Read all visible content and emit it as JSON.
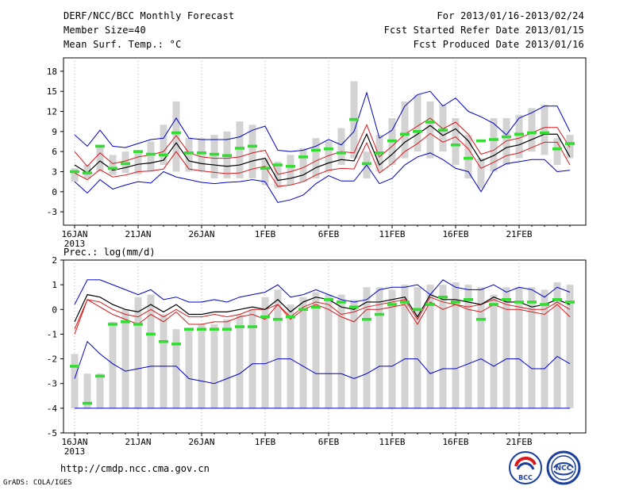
{
  "header": {
    "title": "DERF/NCC/BCC Monthly Forecast",
    "member_size": "Member Size=40",
    "variable": "Mean Surf. Temp.: °C",
    "forecast_period": "For 2013/01/16-2013/02/24",
    "started_date": "Fcst Started Refer Date 2013/01/15",
    "produced_date": "Fcst Produced Date 2013/01/16"
  },
  "footer": {
    "url": "http://cmdp.ncc.cma.gov.cn",
    "software": "GrADS: COLA/IGES",
    "logo_bcc_text": "BCC",
    "logo_ncc_text": "NCC"
  },
  "colors": {
    "box": "#d3d3d3",
    "ensemble_mean": "#000000",
    "std_band": "#d7191c",
    "extreme": "#0000c8",
    "marker": "#33dd33"
  },
  "chart_data": [
    {
      "type": "box",
      "title": "Mean Surf. Temp.: °C",
      "ylim": [
        -5,
        20
      ],
      "yticks": [
        -3,
        0,
        3,
        6,
        9,
        12,
        15,
        18
      ],
      "xtick_labels": [
        "16JAN",
        "21JAN",
        "26JAN",
        "1FEB",
        "6FEB",
        "11FEB",
        "16FEB",
        "21FEB"
      ],
      "xtick_index": [
        0,
        5,
        10,
        15,
        20,
        25,
        30,
        35
      ],
      "year_label": "2013",
      "x_days": 40,
      "series": [
        {
          "name": "box_low",
          "values": [
            1.5,
            2.0,
            3.0,
            2.5,
            2.8,
            2.6,
            3.0,
            4.0,
            3.0,
            3.0,
            3.0,
            2.0,
            2.0,
            2.0,
            2.0,
            1.0,
            0.5,
            1.0,
            1.5,
            2.0,
            3.0,
            4.0,
            5.0,
            2.0,
            3.0,
            4.0,
            5.0,
            6.0,
            5.0,
            6.0,
            4.0,
            2.0,
            0.5,
            3.0,
            4.0,
            5.0,
            6.0,
            5.5,
            4.0,
            5.0
          ]
        },
        {
          "name": "box_high",
          "values": [
            3.5,
            4.0,
            7.0,
            5.5,
            6.0,
            6.0,
            7.5,
            10.0,
            13.5,
            8.0,
            8.0,
            8.5,
            9.0,
            10.5,
            10.0,
            5.0,
            4.5,
            5.5,
            6.5,
            8.0,
            7.5,
            9.5,
            16.5,
            6.0,
            8.5,
            11.0,
            13.5,
            14.5,
            13.5,
            13.0,
            11.0,
            8.5,
            5.0,
            11.0,
            11.0,
            11.5,
            12.5,
            13.0,
            8.0,
            8.5
          ]
        },
        {
          "name": "max",
          "values": [
            8.5,
            6.8,
            9.2,
            6.8,
            6.6,
            7.2,
            7.8,
            8.0,
            11.0,
            8.0,
            7.8,
            7.8,
            7.8,
            8.2,
            9.2,
            9.8,
            6.2,
            6.0,
            6.2,
            6.8,
            7.8,
            7.0,
            9.0,
            14.8,
            8.0,
            9.2,
            12.8,
            14.5,
            15.0,
            12.8,
            14.0,
            12.0,
            11.2,
            10.2,
            8.5,
            11.0,
            11.8,
            12.8,
            12.8,
            9.0
          ]
        },
        {
          "name": "min",
          "values": [
            1.5,
            -0.2,
            1.8,
            0.4,
            1.0,
            1.5,
            1.3,
            3.0,
            2.2,
            1.8,
            1.4,
            1.2,
            1.4,
            1.5,
            1.8,
            1.5,
            -1.6,
            -1.2,
            -0.5,
            1.2,
            2.4,
            1.6,
            1.6,
            4.0,
            1.2,
            2.0,
            4.0,
            5.2,
            5.8,
            4.8,
            3.5,
            3.0,
            0.0,
            3.2,
            4.2,
            4.5,
            4.8,
            4.8,
            3.0,
            3.2
          ]
        },
        {
          "name": "mean_plus_std",
          "values": [
            6.0,
            3.8,
            5.8,
            4.2,
            4.6,
            5.2,
            5.5,
            6.0,
            8.4,
            5.8,
            5.2,
            5.0,
            5.0,
            5.2,
            5.8,
            6.2,
            2.6,
            3.0,
            3.6,
            4.6,
            5.4,
            6.0,
            5.8,
            10.0,
            5.2,
            6.8,
            8.6,
            9.8,
            11.0,
            9.4,
            10.4,
            8.6,
            5.6,
            6.2,
            7.6,
            8.0,
            8.8,
            9.6,
            9.6,
            6.6
          ]
        },
        {
          "name": "mean",
          "values": [
            4.0,
            2.8,
            4.6,
            3.2,
            3.6,
            4.1,
            4.3,
            4.7,
            7.3,
            4.6,
            4.2,
            4.0,
            3.8,
            4.0,
            4.6,
            5.0,
            1.7,
            2.0,
            2.5,
            3.6,
            4.3,
            4.8,
            4.6,
            8.6,
            4.0,
            5.6,
            7.4,
            8.6,
            9.9,
            8.4,
            9.4,
            7.6,
            4.6,
            5.4,
            6.6,
            7.0,
            7.8,
            8.6,
            8.6,
            5.2
          ]
        },
        {
          "name": "mean_minus_std",
          "values": [
            2.8,
            1.8,
            3.3,
            2.2,
            2.5,
            3.0,
            3.1,
            3.4,
            6.0,
            3.4,
            3.1,
            2.9,
            2.7,
            2.8,
            3.4,
            3.8,
            0.8,
            1.0,
            1.5,
            2.5,
            3.2,
            3.5,
            3.4,
            7.3,
            2.8,
            4.2,
            6.0,
            7.2,
            8.7,
            7.4,
            8.2,
            6.4,
            3.5,
            4.4,
            5.4,
            5.8,
            6.6,
            7.4,
            7.4,
            4.0
          ]
        },
        {
          "name": "marker",
          "values": [
            3.0,
            2.8,
            6.8,
            3.5,
            4.2,
            6.0,
            5.6,
            5.5,
            8.8,
            5.8,
            5.8,
            5.6,
            5.4,
            6.5,
            6.8,
            3.5,
            4.0,
            3.8,
            5.2,
            6.2,
            6.4,
            5.8,
            10.8,
            4.2,
            5.8,
            7.6,
            8.6,
            9.0,
            10.4,
            9.2,
            7.0,
            5.0,
            7.6,
            7.8,
            8.2,
            8.6,
            8.8,
            8.8,
            6.4,
            7.2
          ]
        }
      ]
    },
    {
      "type": "box",
      "title": "Prec.: log(mm/d)",
      "ylim": [
        -5,
        2
      ],
      "yticks": [
        -5,
        -4,
        -3,
        -2,
        -1,
        0,
        1,
        2
      ],
      "xtick_labels": [
        "16JAN",
        "21JAN",
        "26JAN",
        "1FEB",
        "6FEB",
        "11FEB",
        "16FEB",
        "21FEB"
      ],
      "xtick_index": [
        0,
        5,
        10,
        15,
        20,
        25,
        30,
        35
      ],
      "year_label": "2013",
      "x_days": 40,
      "series": [
        {
          "name": "box_low",
          "values": [
            -4.0,
            -4.0,
            -4.0,
            -4.0,
            -4.0,
            -4.0,
            -4.0,
            -4.0,
            -4.0,
            -4.0,
            -4.0,
            -4.0,
            -4.0,
            -4.0,
            -4.0,
            -4.0,
            -4.0,
            -4.0,
            -4.0,
            -4.0,
            -4.0,
            -4.0,
            -4.0,
            -4.0,
            -4.0,
            -4.0,
            -4.0,
            -4.0,
            -4.0,
            -4.0,
            -4.0,
            -4.0,
            -4.0,
            -4.0,
            -4.0,
            -4.0,
            -4.0,
            -4.0,
            -4.0,
            -4.0
          ]
        },
        {
          "name": "box_high",
          "values": [
            -1.8,
            -2.6,
            -2.6,
            -0.5,
            0.0,
            0.5,
            0.6,
            -0.2,
            -0.8,
            -0.8,
            -0.6,
            -0.6,
            -0.4,
            -0.2,
            0.0,
            0.5,
            0.8,
            0.2,
            0.5,
            0.7,
            0.6,
            0.6,
            0.4,
            0.9,
            0.9,
            0.8,
            1.0,
            0.9,
            1.0,
            1.0,
            1.1,
            1.0,
            0.9,
            0.6,
            0.9,
            0.9,
            0.9,
            0.8,
            1.1,
            1.0
          ]
        },
        {
          "name": "max",
          "values": [
            0.2,
            1.2,
            1.2,
            1.0,
            0.8,
            0.6,
            0.8,
            0.4,
            0.5,
            0.3,
            0.3,
            0.4,
            0.3,
            0.5,
            0.6,
            0.7,
            1.0,
            0.5,
            0.6,
            0.8,
            0.6,
            0.4,
            0.3,
            0.4,
            0.8,
            0.9,
            0.9,
            1.0,
            0.6,
            1.2,
            0.9,
            0.8,
            0.8,
            1.0,
            0.7,
            0.9,
            0.8,
            0.5,
            0.9,
            0.7
          ]
        },
        {
          "name": "min",
          "values": [
            -2.8,
            -1.3,
            -1.8,
            -2.2,
            -2.5,
            -2.4,
            -2.3,
            -2.3,
            -2.3,
            -2.8,
            -2.9,
            -3.0,
            -2.8,
            -2.6,
            -2.2,
            -2.2,
            -2.0,
            -2.0,
            -2.3,
            -2.6,
            -2.6,
            -2.6,
            -2.8,
            -2.6,
            -2.3,
            -2.3,
            -2.0,
            -2.0,
            -2.6,
            -2.4,
            -2.4,
            -2.2,
            -2.0,
            -2.3,
            -2.0,
            -2.0,
            -2.4,
            -2.4,
            -1.9,
            -2.2
          ]
        },
        {
          "name": "mean_plus_std",
          "values": [
            -0.8,
            0.4,
            0.3,
            0.0,
            -0.2,
            -0.3,
            0.0,
            -0.3,
            0.0,
            -0.3,
            -0.3,
            -0.2,
            -0.3,
            -0.2,
            0.0,
            0.0,
            0.2,
            -0.3,
            0.1,
            0.3,
            0.2,
            -0.2,
            -0.1,
            0.1,
            0.2,
            0.3,
            0.4,
            -0.4,
            0.5,
            0.3,
            0.2,
            0.1,
            0.2,
            0.4,
            0.2,
            0.1,
            0.0,
            0.0,
            0.3,
            0.0
          ]
        },
        {
          "name": "mean",
          "values": [
            -0.5,
            0.6,
            0.5,
            0.2,
            0.0,
            -0.1,
            0.2,
            -0.1,
            0.2,
            -0.2,
            -0.2,
            -0.1,
            -0.1,
            0.0,
            0.1,
            0.0,
            0.4,
            -0.1,
            0.3,
            0.5,
            0.4,
            0.1,
            0.0,
            0.3,
            0.3,
            0.4,
            0.5,
            -0.3,
            0.6,
            0.4,
            0.4,
            0.3,
            0.2,
            0.5,
            0.3,
            0.3,
            0.1,
            0.2,
            0.4,
            0.2
          ]
        },
        {
          "name": "mean_minus_std",
          "values": [
            -1.0,
            0.4,
            0.1,
            -0.2,
            -0.4,
            -0.6,
            -0.2,
            -0.5,
            -0.1,
            -0.6,
            -0.6,
            -0.5,
            -0.5,
            -0.3,
            -0.2,
            -0.4,
            0.2,
            -0.4,
            0.0,
            0.2,
            0.0,
            -0.3,
            -0.5,
            0.0,
            0.0,
            0.1,
            0.2,
            -0.6,
            0.3,
            0.0,
            0.2,
            0.0,
            -0.1,
            0.2,
            0.0,
            0.0,
            -0.1,
            -0.2,
            0.2,
            -0.3
          ]
        },
        {
          "name": "marker",
          "values": [
            -2.3,
            -3.8,
            -2.7,
            -0.6,
            -0.5,
            -0.6,
            -1.0,
            -1.3,
            -1.4,
            -0.8,
            -0.8,
            -0.8,
            -0.8,
            -0.7,
            -0.7,
            -0.3,
            -0.4,
            -0.3,
            0.0,
            0.1,
            0.4,
            0.3,
            0.1,
            -0.4,
            -0.2,
            0.2,
            0.3,
            0.0,
            0.2,
            0.5,
            0.3,
            0.4,
            -0.4,
            0.2,
            0.4,
            0.3,
            0.3,
            0.2,
            0.4,
            0.3
          ]
        }
      ]
    }
  ]
}
